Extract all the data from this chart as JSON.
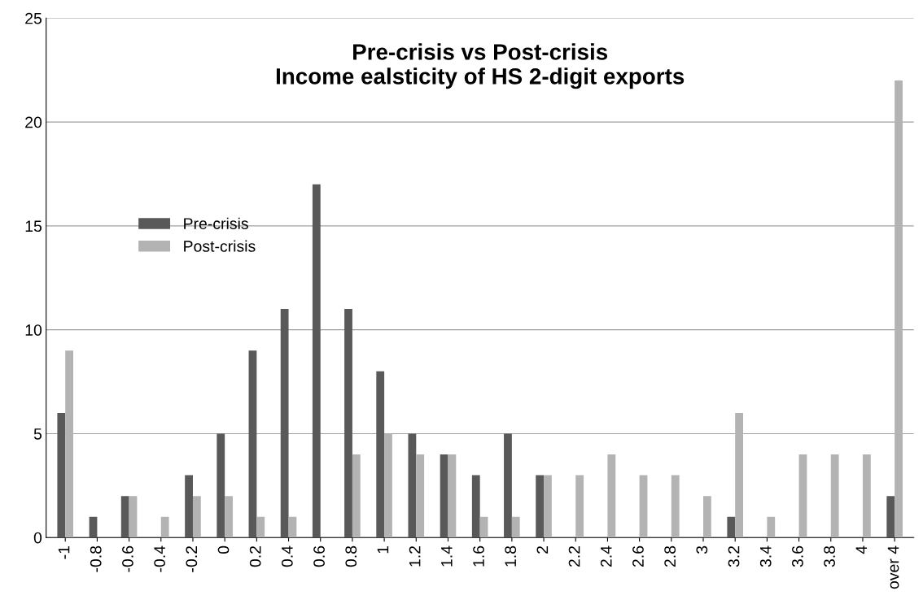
{
  "chart_data": {
    "type": "bar",
    "title": "Pre-crisis vs Post-crisis\nIncome ealsticity of HS 2-digit exports",
    "categories": [
      "-1",
      "-0.8",
      "-0.6",
      "-0.4",
      "-0.2",
      "0",
      "0.2",
      "0.4",
      "0.6",
      "0.8",
      "1",
      "1.2",
      "1.4",
      "1.6",
      "1.8",
      "2",
      "2.2",
      "2.4",
      "2.6",
      "2.8",
      "3",
      "3.2",
      "3.4",
      "3.6",
      "3.8",
      "4",
      "over 4"
    ],
    "series": [
      {
        "name": "Pre-crisis",
        "color": "#595959",
        "values": [
          6,
          1,
          2,
          0,
          3,
          5,
          9,
          11,
          17,
          11,
          8,
          5,
          4,
          3,
          5,
          3,
          0,
          0,
          0,
          0,
          0,
          1,
          0,
          0,
          0,
          0,
          2
        ]
      },
      {
        "name": "Post-crisis",
        "color": "#b3b3b3",
        "values": [
          9,
          0,
          2,
          1,
          2,
          2,
          1,
          1,
          0,
          4,
          5,
          4,
          4,
          1,
          1,
          3,
          3,
          4,
          3,
          3,
          2,
          6,
          1,
          4,
          4,
          4,
          22
        ]
      }
    ],
    "ylim": [
      0,
      25
    ],
    "yticks": [
      0,
      5,
      10,
      15,
      20,
      25
    ],
    "grid": "y",
    "legend": "left"
  }
}
